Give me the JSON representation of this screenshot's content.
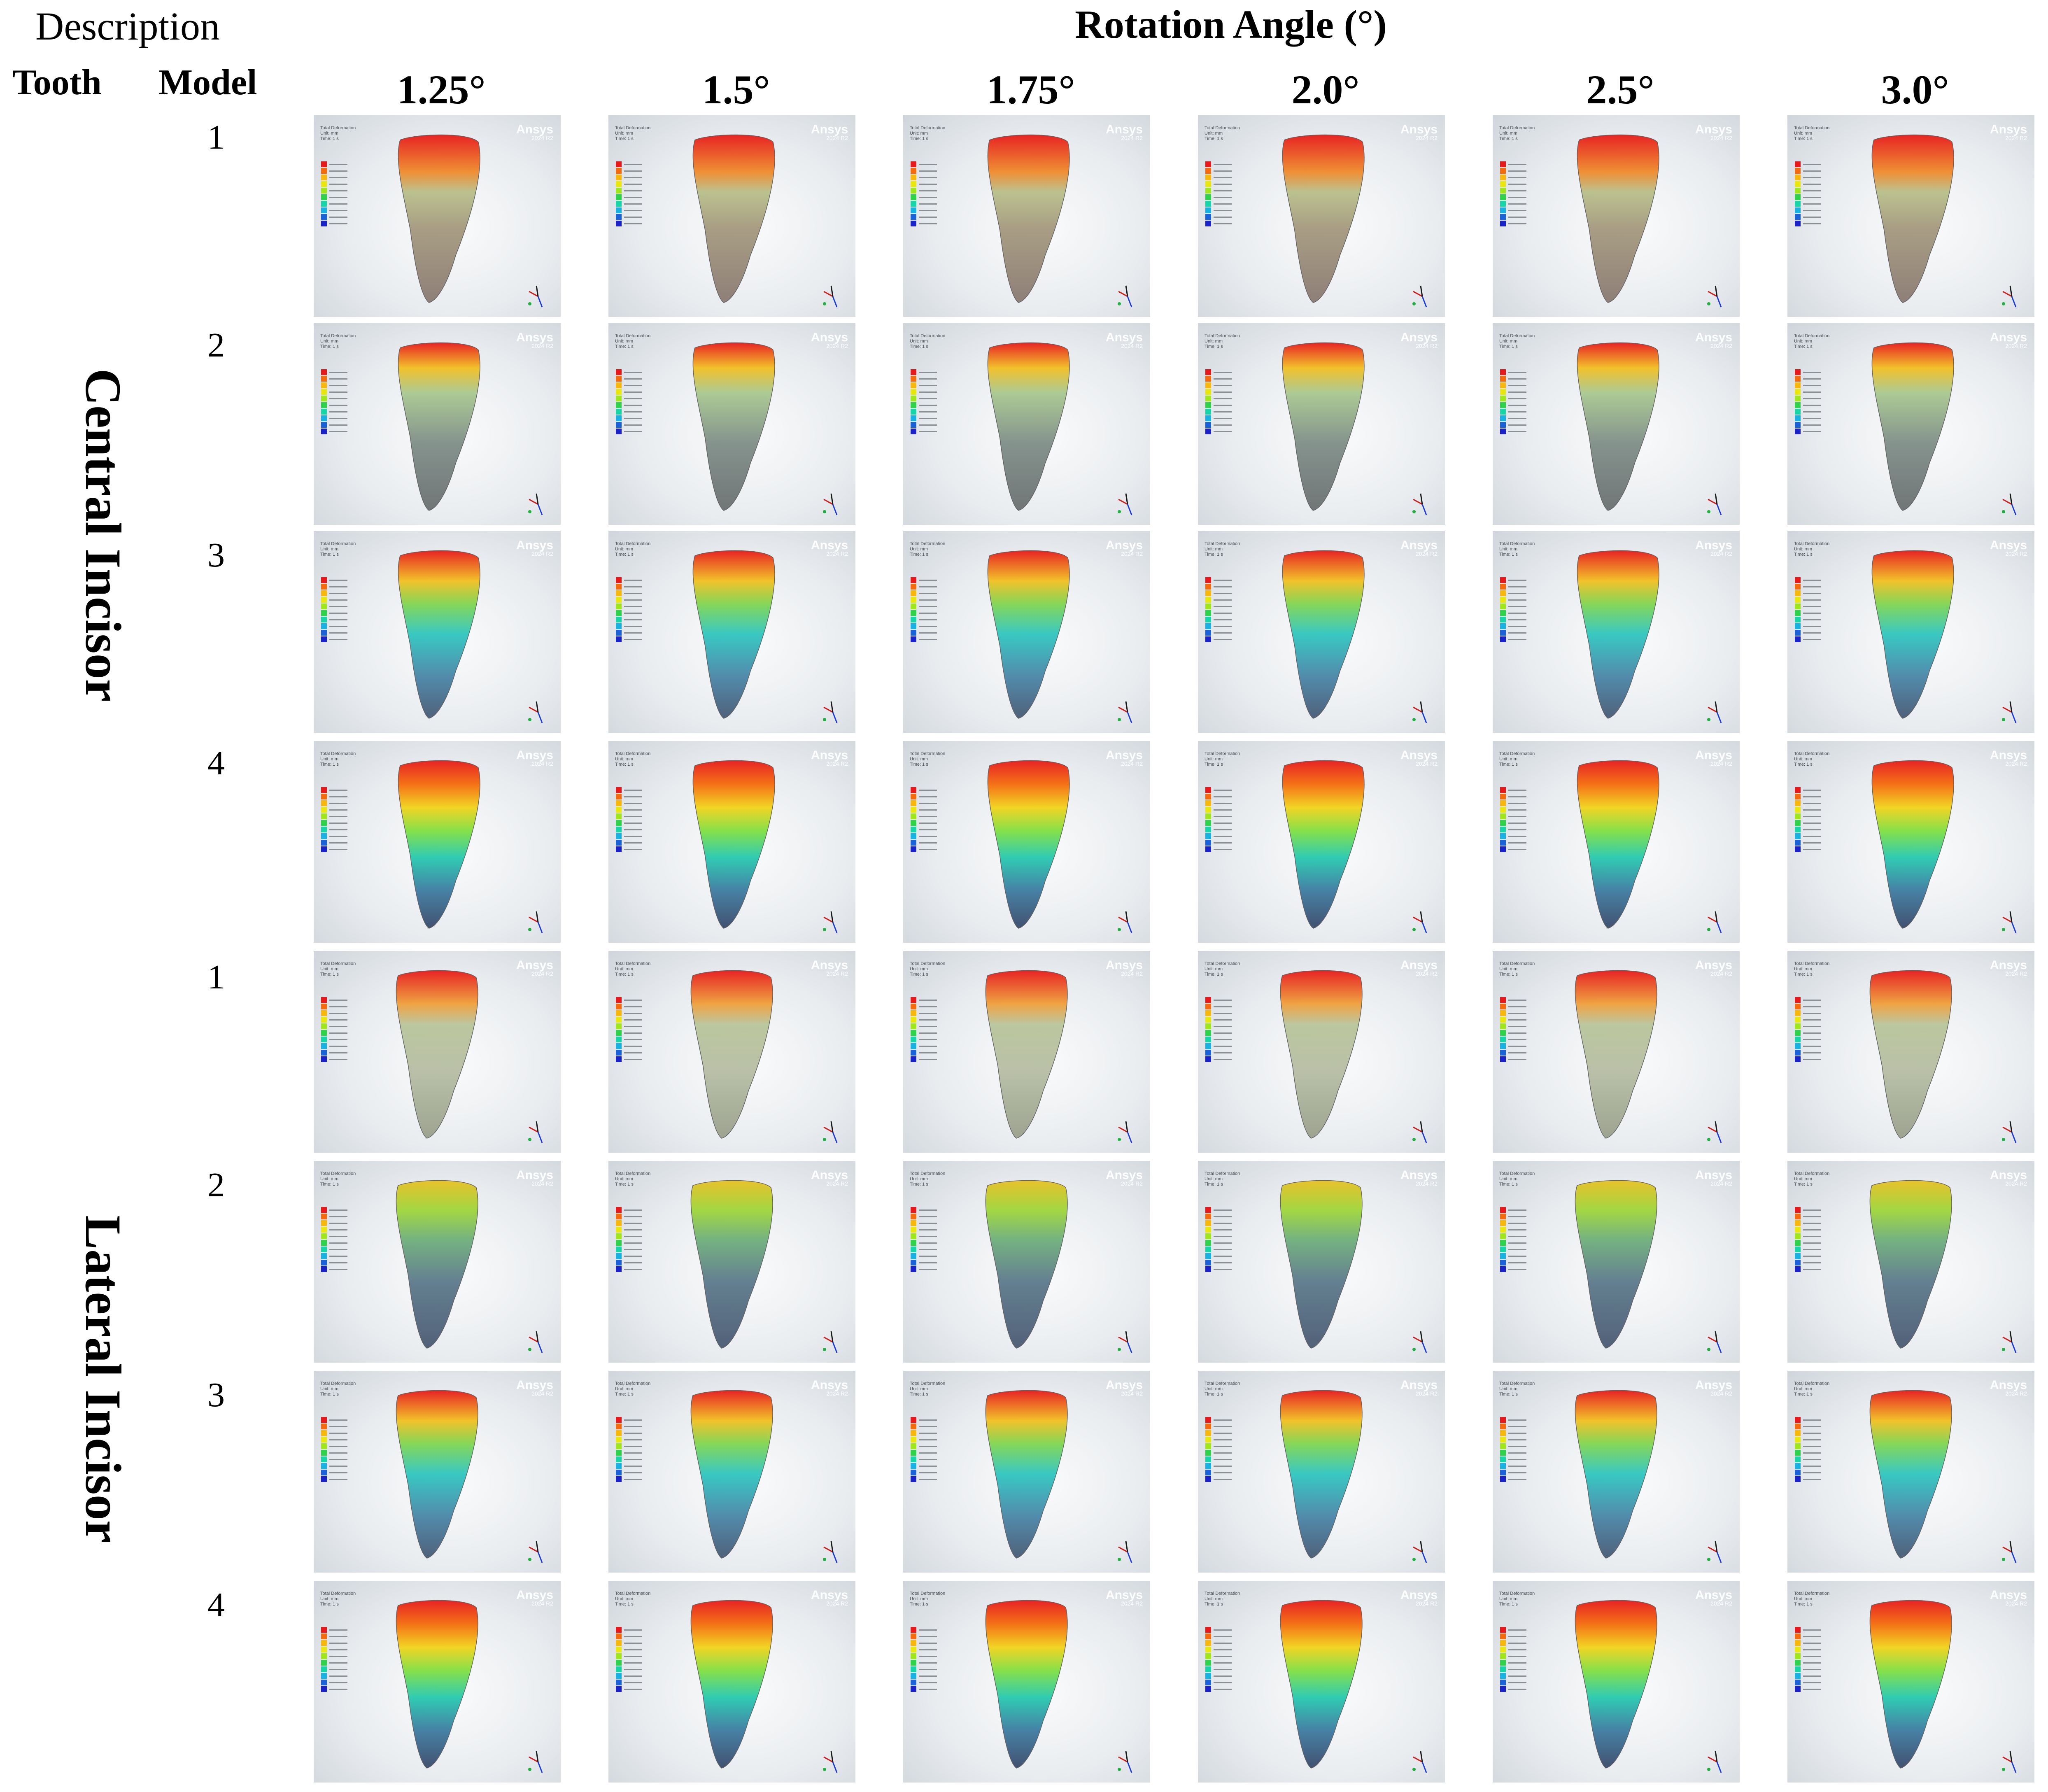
{
  "header": {
    "description": "Description",
    "rotation_title": "Rotation Angle (°)",
    "tooth_col": "Tooth",
    "model_col": "Model"
  },
  "angles": [
    "1.25°",
    "1.5°",
    "1.75°",
    "2.0°",
    "2.5°",
    "3.0°"
  ],
  "groups": [
    {
      "tooth": "Central Incisor",
      "models": [
        "1",
        "2",
        "3",
        "4"
      ]
    },
    {
      "tooth": "Lateral Incisor",
      "models": [
        "1",
        "2",
        "3",
        "4"
      ]
    }
  ],
  "panel_overlay": {
    "brand": "Ansys",
    "version": "2024 R2",
    "result_lines": [
      "Total Deformation",
      "Unit: mm",
      "Time: 1 s"
    ]
  },
  "colors": {
    "bg_light": "#f6f7f8",
    "bg_dark": "#cfd5db",
    "legend": [
      "#e8191a",
      "#f56a0c",
      "#f7b80b",
      "#e8e80c",
      "#9fe61a",
      "#2fd34a",
      "#16d6a8",
      "#17b2e2",
      "#1a62d8",
      "#1a23c8"
    ]
  }
}
